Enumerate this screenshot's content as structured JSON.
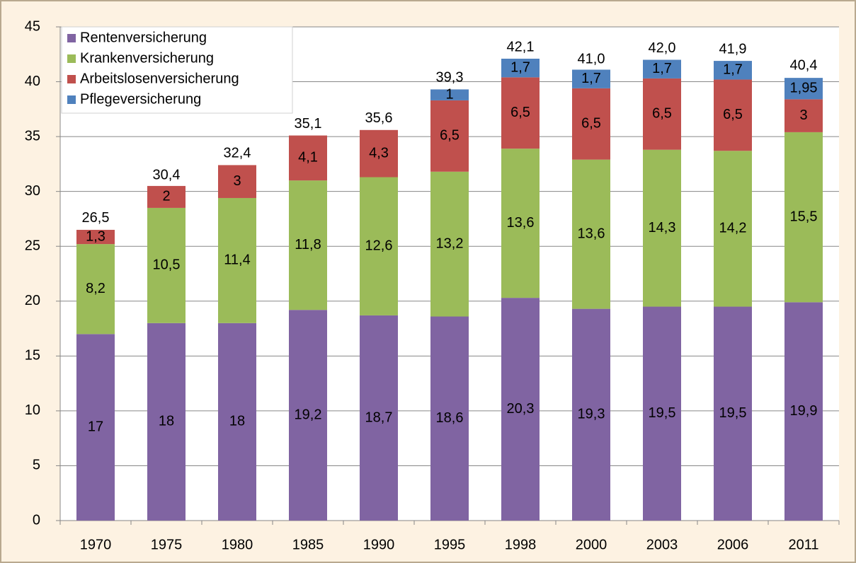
{
  "chart_data": {
    "type": "stacked_bar",
    "categories": [
      "1970",
      "1975",
      "1980",
      "1985",
      "1990",
      "1995",
      "1998",
      "2000",
      "2003",
      "2006",
      "2011"
    ],
    "series": [
      {
        "name": "Rentenversicherung",
        "color": "#8064a2",
        "values": [
          17,
          18,
          18,
          19.2,
          18.7,
          18.6,
          20.3,
          19.3,
          19.5,
          19.5,
          19.9
        ],
        "value_labels": [
          "17",
          "18",
          "18",
          "19,2",
          "18,7",
          "18,6",
          "20,3",
          "19,3",
          "19,5",
          "19,5",
          "19,9"
        ]
      },
      {
        "name": "Krankenversicherung",
        "color": "#9bbb59",
        "values": [
          8.2,
          10.5,
          11.4,
          11.8,
          12.6,
          13.2,
          13.6,
          13.6,
          14.3,
          14.2,
          15.5
        ],
        "value_labels": [
          "8,2",
          "10,5",
          "11,4",
          "11,8",
          "12,6",
          "13,2",
          "13,6",
          "13,6",
          "14,3",
          "14,2",
          "15,5"
        ]
      },
      {
        "name": "Arbeitslosenversicherung",
        "color": "#c0504d",
        "values": [
          1.3,
          2,
          3,
          4.1,
          4.3,
          6.5,
          6.5,
          6.5,
          6.5,
          6.5,
          3
        ],
        "value_labels": [
          "1,3",
          "2",
          "3",
          "4,1",
          "4,3",
          "6,5",
          "6,5",
          "6,5",
          "6,5",
          "6,5",
          "3"
        ]
      },
      {
        "name": "Pflegeversicherung",
        "color": "#4f81bd",
        "values": [
          null,
          null,
          null,
          null,
          null,
          1,
          1.7,
          1.7,
          1.7,
          1.7,
          1.95
        ],
        "value_labels": [
          null,
          null,
          null,
          null,
          null,
          "1",
          "1,7",
          "1,7",
          "1,7",
          "1,7",
          "1,95"
        ]
      }
    ],
    "totals": [
      26.5,
      30.4,
      32.4,
      35.1,
      35.6,
      39.3,
      42.1,
      41.0,
      42.0,
      41.9,
      40.4
    ],
    "total_labels": [
      "26,5",
      "30,4",
      "32,4",
      "35,1",
      "35,6",
      "39,3",
      "42,1",
      "41,0",
      "42,0",
      "41,9",
      "40,4"
    ],
    "ylim": [
      0,
      45
    ],
    "yticks": [
      0,
      5,
      10,
      15,
      20,
      25,
      30,
      35,
      40,
      45
    ],
    "grid": true,
    "legend": "top-left"
  }
}
